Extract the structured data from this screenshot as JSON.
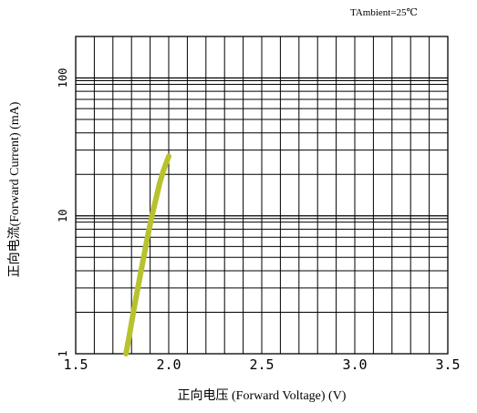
{
  "chart_data": {
    "type": "line",
    "annotation": "TAmbient=25℃",
    "xlabel": "正向电压 (Forward Voltage) (V)",
    "ylabel": "正向电流(Forward Current) (mA)",
    "x_ticks": [
      1.5,
      2.0,
      2.5,
      3.0,
      3.5
    ],
    "x_tick_labels": [
      "1.5",
      "2.0",
      "2.5",
      "3.0",
      "3.5"
    ],
    "y_ticks": [
      1,
      10,
      100
    ],
    "y_tick_labels": [
      "1",
      "10",
      "100"
    ],
    "xlim": [
      1.5,
      3.5
    ],
    "ylim": [
      1,
      200
    ],
    "y_scale": "log",
    "grid": true,
    "series": [
      {
        "color": "#b8c22e",
        "x": [
          1.77,
          1.79,
          1.81,
          1.83,
          1.85,
          1.87,
          1.89,
          1.91,
          1.93,
          1.95,
          1.97,
          2.0
        ],
        "y": [
          1.0,
          1.4,
          2.0,
          2.8,
          3.9,
          5.4,
          7.5,
          10.0,
          13.0,
          17.0,
          21.0,
          27.0
        ]
      }
    ]
  }
}
